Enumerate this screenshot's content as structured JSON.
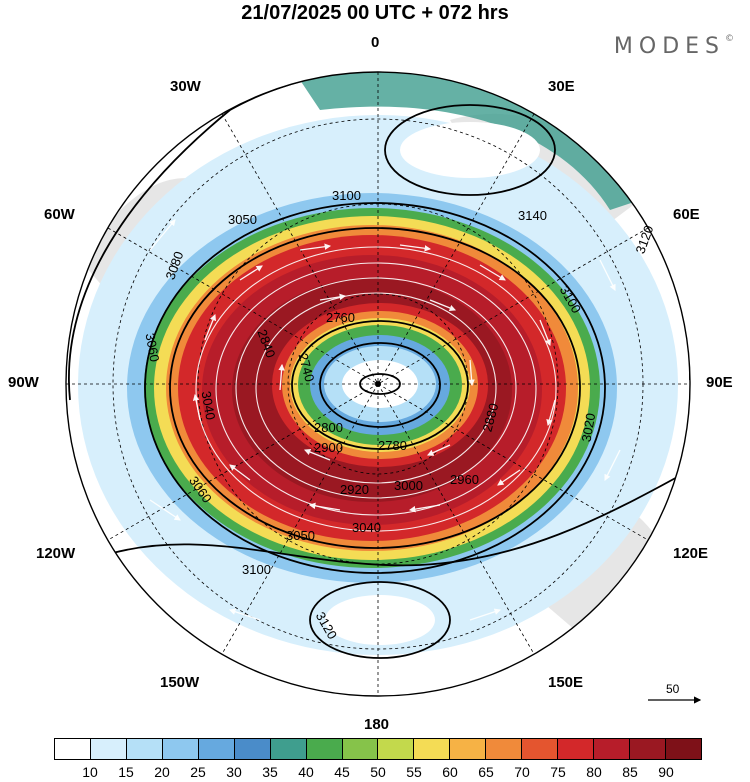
{
  "header": {
    "title": "21/07/2025  00 UTC  + 072 hrs",
    "brand": "MODES",
    "brand_mark": "©"
  },
  "longitude_labels": [
    "0",
    "30E",
    "60E",
    "90E",
    "120E",
    "150E",
    "180",
    "150W",
    "120W",
    "90W",
    "60W",
    "30W"
  ],
  "contour_labels": [
    "3100",
    "3140",
    "3120",
    "3100",
    "3080",
    "3060",
    "3040",
    "3020",
    "3000",
    "2960",
    "2920",
    "2900",
    "2880",
    "2840",
    "2800",
    "2780",
    "2760",
    "2740",
    "3050",
    "3060",
    "3040",
    "3120",
    "3100",
    "3050"
  ],
  "wind_reference": {
    "value": "50"
  },
  "colorbar": {
    "labels": [
      "10",
      "15",
      "20",
      "25",
      "30",
      "35",
      "40",
      "45",
      "50",
      "55",
      "60",
      "65",
      "70",
      "75",
      "80",
      "85",
      "90"
    ],
    "colors": [
      "#ffffff",
      "#d7effc",
      "#b5e0f7",
      "#8ec8ef",
      "#66a9df",
      "#4a8cc9",
      "#3f9e8e",
      "#4aab4d",
      "#86c34a",
      "#c3d94c",
      "#f4dc55",
      "#f6b245",
      "#f08a3a",
      "#e4552f",
      "#d3282a",
      "#b71d2a",
      "#9a1822",
      "#7e1118"
    ]
  }
}
